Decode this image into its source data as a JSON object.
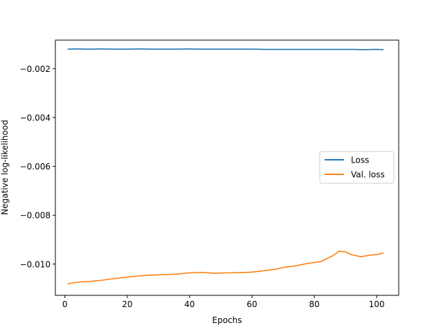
{
  "chart_data": {
    "type": "line",
    "title": "",
    "xlabel": "Epochs",
    "ylabel": "Negative log-likelihood",
    "xlim": [
      -3.05,
      107.05
    ],
    "ylim": [
      -0.01128,
      -0.00083
    ],
    "xticks": [
      0,
      20,
      40,
      60,
      80,
      100
    ],
    "yticks": [
      -0.01,
      -0.008,
      -0.006,
      -0.004,
      -0.002
    ],
    "xtick_labels": [
      "0",
      "20",
      "40",
      "60",
      "80",
      "100"
    ],
    "ytick_labels": [
      "−0.010",
      "−0.008",
      "−0.006",
      "−0.004",
      "−0.002"
    ],
    "grid": false,
    "legend_position": "center-right",
    "series": [
      {
        "name": "Loss",
        "color": "#1f77b4",
        "x": [
          1,
          4,
          8,
          12,
          16,
          20,
          24,
          28,
          32,
          36,
          40,
          44,
          48,
          52,
          56,
          60,
          64,
          68,
          72,
          76,
          80,
          84,
          88,
          92,
          96,
          100,
          102
        ],
        "y": [
          -0.0012,
          -0.00119,
          -0.0012,
          -0.00119,
          -0.0012,
          -0.0012,
          -0.00119,
          -0.0012,
          -0.0012,
          -0.0012,
          -0.00119,
          -0.0012,
          -0.0012,
          -0.0012,
          -0.0012,
          -0.0012,
          -0.00121,
          -0.00121,
          -0.00121,
          -0.00121,
          -0.00121,
          -0.00121,
          -0.00121,
          -0.00121,
          -0.00122,
          -0.00121,
          -0.00122
        ]
      },
      {
        "name": "Val. loss",
        "color": "#ff7f0e",
        "x": [
          1,
          3,
          5,
          8,
          12,
          16,
          20,
          24,
          28,
          32,
          36,
          40,
          44,
          48,
          52,
          56,
          60,
          64,
          68,
          70,
          74,
          78,
          82,
          86,
          88,
          90,
          92,
          95,
          98,
          100,
          102
        ],
        "y": [
          -0.01081,
          -0.01076,
          -0.01073,
          -0.01071,
          -0.01066,
          -0.01059,
          -0.01053,
          -0.01048,
          -0.01045,
          -0.01043,
          -0.01041,
          -0.01036,
          -0.01034,
          -0.01038,
          -0.01036,
          -0.01035,
          -0.01033,
          -0.01027,
          -0.0102,
          -0.01014,
          -0.01007,
          -0.00997,
          -0.0099,
          -0.00965,
          -0.00947,
          -0.0095,
          -0.00962,
          -0.0097,
          -0.00963,
          -0.00961,
          -0.00955
        ]
      }
    ]
  }
}
